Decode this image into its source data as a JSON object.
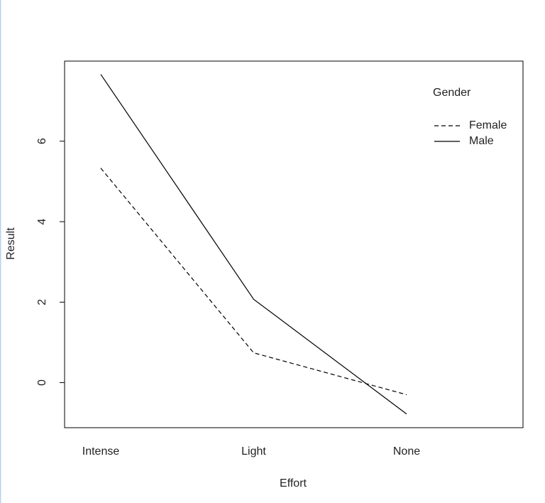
{
  "chart_data": {
    "type": "line",
    "x_label": "Effort",
    "y_label": "Result",
    "categories": [
      "Intense",
      "Light",
      "None"
    ],
    "legend_title": "Gender",
    "series": [
      {
        "name": "Female",
        "color": "#000000",
        "linestyle": "dashed",
        "values": [
          5.33,
          0.74,
          -0.3
        ]
      },
      {
        "name": "Male",
        "color": "#000000",
        "linestyle": "solid",
        "values": [
          7.66,
          2.07,
          -0.78
        ]
      }
    ],
    "ylim": [
      -1.12,
      7.99
    ],
    "yticks": [
      0,
      2,
      4,
      6
    ],
    "legend": "top-right",
    "grid": false
  }
}
